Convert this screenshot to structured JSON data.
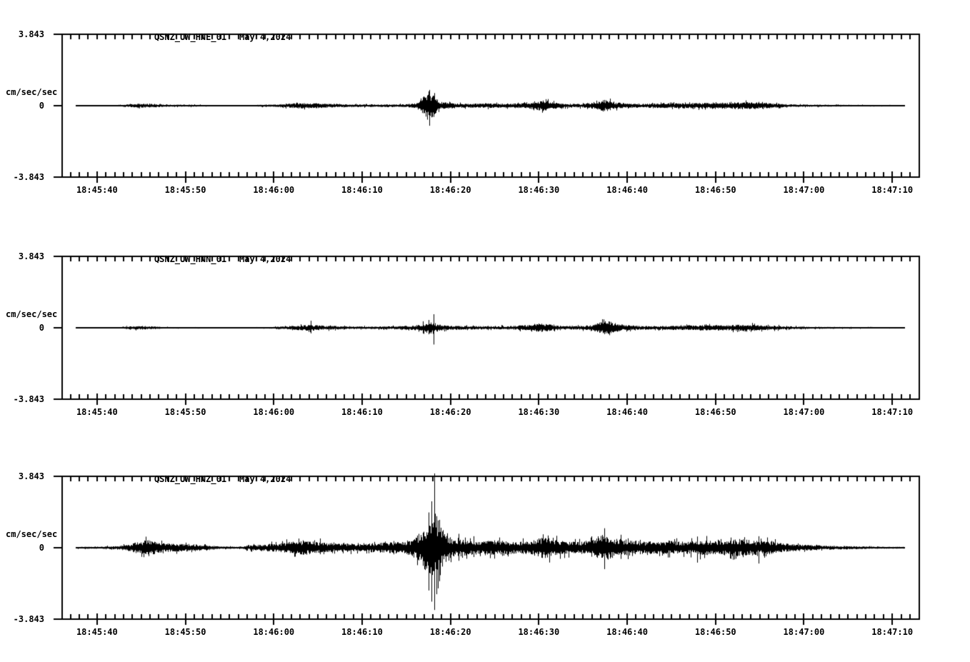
{
  "page": {
    "background": "#ffffff",
    "trace_color": "#000000",
    "text_color": "#000000"
  },
  "chart_data": [
    {
      "type": "line",
      "kind": "seismogram",
      "station": "QSNZ_UW_HNE_01",
      "date": "May 4,2024",
      "ylabel": "cm/sec/sec",
      "ytick_labels": [
        "3.843",
        "0",
        "-3.843"
      ],
      "ylim": [
        -3.843,
        3.843
      ],
      "xtick_labels": [
        "18:45:40",
        "18:45:50",
        "18:46:00",
        "18:46:10",
        "18:46:20",
        "18:46:30",
        "18:46:40",
        "18:46:50",
        "18:47:00",
        "18:47:10"
      ],
      "xtick_seconds_after_1845": [
        40,
        50,
        60,
        70,
        80,
        90,
        100,
        110,
        120,
        130
      ],
      "minor_tick_interval_s": 1,
      "trace_start_s": 37.6,
      "trace_end_s": 131.4,
      "envelope": [
        [
          37.6,
          0.02
        ],
        [
          42,
          0.02
        ],
        [
          43.5,
          0.06
        ],
        [
          45,
          0.09
        ],
        [
          46.5,
          0.08
        ],
        [
          48,
          0.04
        ],
        [
          50,
          0.05
        ],
        [
          51.5,
          0.04
        ],
        [
          53,
          0.02
        ],
        [
          55,
          0.02
        ],
        [
          57.5,
          0.02
        ],
        [
          58.5,
          0.05
        ],
        [
          60,
          0.05
        ],
        [
          61.5,
          0.09
        ],
        [
          63,
          0.13
        ],
        [
          64.5,
          0.12
        ],
        [
          66,
          0.09
        ],
        [
          67.5,
          0.07
        ],
        [
          69,
          0.06
        ],
        [
          71,
          0.06
        ],
        [
          73,
          0.06
        ],
        [
          75,
          0.07
        ],
        [
          76.3,
          0.12
        ],
        [
          76.8,
          0.35
        ],
        [
          77.5,
          0.7
        ],
        [
          78.2,
          0.4
        ],
        [
          78.8,
          0.18
        ],
        [
          80,
          0.12
        ],
        [
          82,
          0.09
        ],
        [
          84,
          0.11
        ],
        [
          86,
          0.09
        ],
        [
          88,
          0.11
        ],
        [
          89.5,
          0.18
        ],
        [
          90.5,
          0.24
        ],
        [
          91.5,
          0.16
        ],
        [
          93,
          0.09
        ],
        [
          95,
          0.09
        ],
        [
          96.5,
          0.18
        ],
        [
          97.4,
          0.28
        ],
        [
          98.5,
          0.16
        ],
        [
          100,
          0.11
        ],
        [
          102,
          0.09
        ],
        [
          104,
          0.11
        ],
        [
          106,
          0.11
        ],
        [
          108,
          0.13
        ],
        [
          110,
          0.16
        ],
        [
          111,
          0.13
        ],
        [
          112.5,
          0.16
        ],
        [
          114,
          0.16
        ],
        [
          115.5,
          0.13
        ],
        [
          117,
          0.09
        ],
        [
          119,
          0.06
        ],
        [
          121,
          0.05
        ],
        [
          124,
          0.04
        ],
        [
          127,
          0.03
        ],
        [
          131.4,
          0.02
        ]
      ],
      "spikes": [
        [
          77.35,
          0.55,
          0.75
        ],
        [
          77.6,
          0.85,
          1.08
        ],
        [
          77.9,
          0.45,
          0.6
        ],
        [
          78.15,
          0.3,
          0.45
        ]
      ]
    },
    {
      "type": "line",
      "kind": "seismogram",
      "station": "QSNZ_UW_HNN_01",
      "date": "May 4,2024",
      "ylabel": "cm/sec/sec",
      "ytick_labels": [
        "3.843",
        "0",
        "-3.843"
      ],
      "ylim": [
        -3.843,
        3.843
      ],
      "xtick_labels": [
        "18:45:40",
        "18:45:50",
        "18:46:00",
        "18:46:10",
        "18:46:20",
        "18:46:30",
        "18:46:40",
        "18:46:50",
        "18:47:00",
        "18:47:10"
      ],
      "xtick_seconds_after_1845": [
        40,
        50,
        60,
        70,
        80,
        90,
        100,
        110,
        120,
        130
      ],
      "minor_tick_interval_s": 1,
      "trace_start_s": 37.6,
      "trace_end_s": 131.4,
      "envelope": [
        [
          37.6,
          0.02
        ],
        [
          42,
          0.02
        ],
        [
          43.5,
          0.06
        ],
        [
          44.8,
          0.09
        ],
        [
          46,
          0.07
        ],
        [
          47.5,
          0.04
        ],
        [
          49,
          0.03
        ],
        [
          51,
          0.03
        ],
        [
          53,
          0.02
        ],
        [
          55,
          0.02
        ],
        [
          57,
          0.02
        ],
        [
          59,
          0.03
        ],
        [
          61,
          0.06
        ],
        [
          62.5,
          0.1
        ],
        [
          64,
          0.14
        ],
        [
          65.5,
          0.1
        ],
        [
          67,
          0.08
        ],
        [
          69,
          0.06
        ],
        [
          71,
          0.06
        ],
        [
          73,
          0.07
        ],
        [
          75,
          0.09
        ],
        [
          76.5,
          0.13
        ],
        [
          77.3,
          0.22
        ],
        [
          77.9,
          0.28
        ],
        [
          78.4,
          0.18
        ],
        [
          79.2,
          0.11
        ],
        [
          81,
          0.08
        ],
        [
          83,
          0.08
        ],
        [
          85,
          0.07
        ],
        [
          87,
          0.09
        ],
        [
          89,
          0.13
        ],
        [
          90,
          0.2
        ],
        [
          91,
          0.17
        ],
        [
          92.2,
          0.1
        ],
        [
          94,
          0.08
        ],
        [
          96,
          0.12
        ],
        [
          97,
          0.26
        ],
        [
          97.8,
          0.32
        ],
        [
          98.8,
          0.18
        ],
        [
          100,
          0.12
        ],
        [
          101.5,
          0.09
        ],
        [
          103,
          0.08
        ],
        [
          105,
          0.1
        ],
        [
          107,
          0.1
        ],
        [
          109,
          0.13
        ],
        [
          110.5,
          0.12
        ],
        [
          112,
          0.13
        ],
        [
          113.5,
          0.16
        ],
        [
          115,
          0.12
        ],
        [
          116.5,
          0.1
        ],
        [
          118,
          0.07
        ],
        [
          120,
          0.05
        ],
        [
          123,
          0.04
        ],
        [
          127,
          0.03
        ],
        [
          131.4,
          0.02
        ]
      ],
      "spikes": [
        [
          64.2,
          0.38,
          0.3
        ],
        [
          76.9,
          0.35,
          0.3
        ],
        [
          77.5,
          0.42,
          0.35
        ],
        [
          78.1,
          0.73,
          0.9
        ]
      ]
    },
    {
      "type": "line",
      "kind": "seismogram",
      "station": "QSNZ_UW_HNZ_01",
      "date": "May 4,2024",
      "ylabel": "cm/sec/sec",
      "ytick_labels": [
        "3.843",
        "0",
        "-3.843"
      ],
      "ylim": [
        -3.843,
        3.843
      ],
      "xtick_labels": [
        "18:45:40",
        "18:45:50",
        "18:46:00",
        "18:46:10",
        "18:46:20",
        "18:46:30",
        "18:46:40",
        "18:46:50",
        "18:47:00",
        "18:47:10"
      ],
      "xtick_seconds_after_1845": [
        40,
        50,
        60,
        70,
        80,
        90,
        100,
        110,
        120,
        130
      ],
      "minor_tick_interval_s": 1,
      "trace_start_s": 37.6,
      "trace_end_s": 131.4,
      "envelope": [
        [
          37.6,
          0.04
        ],
        [
          40,
          0.05
        ],
        [
          42,
          0.07
        ],
        [
          43.5,
          0.15
        ],
        [
          44.8,
          0.3
        ],
        [
          45.8,
          0.34
        ],
        [
          47,
          0.24
        ],
        [
          48.5,
          0.18
        ],
        [
          50,
          0.17
        ],
        [
          51.2,
          0.16
        ],
        [
          52.5,
          0.1
        ],
        [
          54,
          0.06
        ],
        [
          56,
          0.05
        ],
        [
          57.5,
          0.12
        ],
        [
          59,
          0.16
        ],
        [
          60.5,
          0.2
        ],
        [
          62,
          0.28
        ],
        [
          63.5,
          0.32
        ],
        [
          65,
          0.26
        ],
        [
          66.5,
          0.2
        ],
        [
          68,
          0.2
        ],
        [
          70,
          0.16
        ],
        [
          71.5,
          0.22
        ],
        [
          73,
          0.24
        ],
        [
          74.5,
          0.28
        ],
        [
          75.5,
          0.34
        ],
        [
          76.3,
          0.6
        ],
        [
          77,
          0.95
        ],
        [
          77.7,
          1.35
        ],
        [
          78.3,
          1.55
        ],
        [
          78.9,
          1.0
        ],
        [
          79.6,
          0.55
        ],
        [
          80.5,
          0.4
        ],
        [
          81.5,
          0.38
        ],
        [
          82.5,
          0.32
        ],
        [
          84,
          0.3
        ],
        [
          85,
          0.34
        ],
        [
          86.2,
          0.3
        ],
        [
          87.5,
          0.27
        ],
        [
          89,
          0.3
        ],
        [
          90,
          0.44
        ],
        [
          90.8,
          0.48
        ],
        [
          91.8,
          0.36
        ],
        [
          93,
          0.3
        ],
        [
          94.5,
          0.27
        ],
        [
          95.8,
          0.3
        ],
        [
          96.8,
          0.5
        ],
        [
          97.4,
          0.66
        ],
        [
          98.2,
          0.46
        ],
        [
          99.2,
          0.4
        ],
        [
          100.5,
          0.34
        ],
        [
          102,
          0.27
        ],
        [
          103.5,
          0.28
        ],
        [
          104.5,
          0.32
        ],
        [
          106,
          0.27
        ],
        [
          107.5,
          0.3
        ],
        [
          108.5,
          0.36
        ],
        [
          110,
          0.3
        ],
        [
          111.5,
          0.36
        ],
        [
          112.5,
          0.4
        ],
        [
          113.8,
          0.36
        ],
        [
          115,
          0.3
        ],
        [
          116.2,
          0.3
        ],
        [
          117.5,
          0.2
        ],
        [
          119,
          0.15
        ],
        [
          121,
          0.12
        ],
        [
          123,
          0.09
        ],
        [
          125.5,
          0.07
        ],
        [
          128,
          0.05
        ],
        [
          131.4,
          0.04
        ]
      ],
      "spikes": [
        [
          45.8,
          0.4,
          0.45
        ],
        [
          63.3,
          0.4,
          0.38
        ],
        [
          65.2,
          0.5,
          0.35
        ],
        [
          77.5,
          1.9,
          2.3
        ],
        [
          77.85,
          2.5,
          2.9
        ],
        [
          78.15,
          4.0,
          3.35
        ],
        [
          78.45,
          1.7,
          2.5
        ],
        [
          78.7,
          1.5,
          1.8
        ],
        [
          80.9,
          0.75,
          0.7
        ],
        [
          82.6,
          0.62,
          0.5
        ],
        [
          97.4,
          1.05,
          1.15
        ],
        [
          99.3,
          0.7,
          0.6
        ],
        [
          107.9,
          0.35,
          0.8
        ],
        [
          111.7,
          0.55,
          0.6
        ],
        [
          114.9,
          0.62,
          0.85
        ]
      ]
    }
  ]
}
